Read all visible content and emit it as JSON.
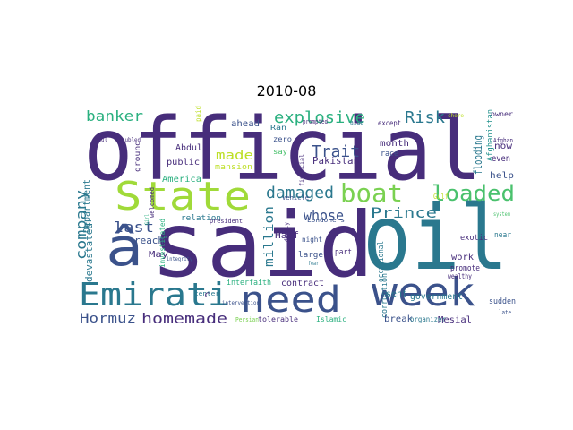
{
  "title": "2010-08",
  "words": [
    {
      "text": "official",
      "color": "#472d7b"
    },
    {
      "text": "said",
      "color": "#472d7b"
    },
    {
      "text": "oil",
      "color": "#2a788e"
    },
    {
      "text": "State",
      "color": "#a0da39"
    },
    {
      "text": "week",
      "color": "#3b528b"
    },
    {
      "text": "need",
      "color": "#3b528b"
    },
    {
      "text": "Emirati",
      "color": "#2a788e"
    },
    {
      "text": "â",
      "color": "#3b528b"
    },
    {
      "text": "boat",
      "color": "#7ad151"
    },
    {
      "text": "loaded",
      "color": "#4ac16d"
    },
    {
      "text": "explosive",
      "color": "#2ab07f"
    },
    {
      "text": "damaged",
      "color": "#2a788e"
    },
    {
      "text": "Risk",
      "color": "#2a788e"
    },
    {
      "text": "Trait",
      "color": "#3b528b"
    },
    {
      "text": "banker",
      "color": "#2ab07f"
    },
    {
      "text": "company",
      "color": "#2a788e"
    },
    {
      "text": "last",
      "color": "#3b528b"
    },
    {
      "text": "made",
      "color": "#bddf26"
    },
    {
      "text": "whose",
      "color": "#3b528b"
    },
    {
      "text": "Prince",
      "color": "#2a788e"
    },
    {
      "text": "homemade",
      "color": "#472d7b"
    },
    {
      "text": "Hormuz",
      "color": "#3b528b"
    },
    {
      "text": "million",
      "color": "#2a788e"
    },
    {
      "text": "flooding",
      "color": "#2a788e"
    },
    {
      "text": "Afghanistan",
      "color": "#21918c"
    },
    {
      "text": "Pakistan",
      "color": "#472d7b"
    },
    {
      "text": "ahead",
      "color": "#3b528b"
    },
    {
      "text": "month",
      "color": "#472d7b"
    },
    {
      "text": "Abdul",
      "color": "#472d7b"
    },
    {
      "text": "public",
      "color": "#472d7b"
    },
    {
      "text": "mansion",
      "color": "#bddf26"
    },
    {
      "text": "America",
      "color": "#2ab07f"
    },
    {
      "text": "devastated",
      "color": "#2a788e"
    },
    {
      "text": "Department",
      "color": "#2a788e"
    },
    {
      "text": "relation",
      "color": "#2a788e"
    },
    {
      "text": "reach",
      "color": "#3b528b"
    },
    {
      "text": "May",
      "color": "#472d7b"
    },
    {
      "text": "Half",
      "color": "#472d7b"
    },
    {
      "text": "contract",
      "color": "#472d7b"
    },
    {
      "text": "interfaith",
      "color": "#2ab07f"
    },
    {
      "text": "corruption",
      "color": "#2a788e"
    },
    {
      "text": "sent",
      "color": "#2a788e"
    },
    {
      "text": "government",
      "color": "#2a788e"
    },
    {
      "text": "break",
      "color": "#3b528b"
    },
    {
      "text": "Mesial",
      "color": "#472d7b"
    },
    {
      "text": "Islamic",
      "color": "#2ab07f"
    },
    {
      "text": "organizer",
      "color": "#2a788e"
    },
    {
      "text": "tolerable",
      "color": "#472d7b"
    },
    {
      "text": "Persian",
      "color": "#7ad151"
    },
    {
      "text": "sudden",
      "color": "#3b528b"
    },
    {
      "text": "late",
      "color": "#3b528b"
    },
    {
      "text": "now",
      "color": "#472d7b"
    },
    {
      "text": "even",
      "color": "#472d7b"
    },
    {
      "text": "help",
      "color": "#3b528b"
    },
    {
      "text": "work",
      "color": "#472d7b"
    },
    {
      "text": "promote",
      "color": "#472d7b"
    },
    {
      "text": "wealthy",
      "color": "#472d7b"
    },
    {
      "text": "exotic",
      "color": "#472d7b"
    },
    {
      "text": "occasional",
      "color": "#2a788e"
    },
    {
      "text": "part",
      "color": "#472d7b"
    },
    {
      "text": "race",
      "color": "#3b528b"
    },
    {
      "text": "large",
      "color": "#3b528b"
    },
    {
      "text": "night",
      "color": "#3b528b"
    },
    {
      "text": "Londoners",
      "color": "#3b528b"
    },
    {
      "text": "zero",
      "color": "#3b528b"
    },
    {
      "text": "Ran",
      "color": "#2a788e"
    },
    {
      "text": "say",
      "color": "#4ac16d"
    },
    {
      "text": "vehicle",
      "color": "#3b528b"
    },
    {
      "text": "president",
      "color": "#472d7b"
    },
    {
      "text": "center",
      "color": "#2a788e"
    },
    {
      "text": "intervention",
      "color": "#3b528b"
    },
    {
      "text": "integrity",
      "color": "#3b528b"
    },
    {
      "text": "welcomed",
      "color": "#472d7b"
    },
    {
      "text": "investigated",
      "color": "#2ab07f"
    },
    {
      "text": "ground",
      "color": "#472d7b"
    },
    {
      "text": "paid",
      "color": "#bddf26"
    },
    {
      "text": "financial",
      "color": "#472d7b"
    },
    {
      "text": "deeply",
      "color": "#472d7b"
    },
    {
      "text": "fear",
      "color": "#2a788e"
    },
    {
      "text": "troubled",
      "color": "#472d7b"
    },
    {
      "text": "prompted",
      "color": "#472d7b"
    },
    {
      "text": "aide",
      "color": "#2a788e"
    },
    {
      "text": "except",
      "color": "#472d7b"
    },
    {
      "text": "chore",
      "color": "#bddf26"
    },
    {
      "text": "owner",
      "color": "#472d7b"
    },
    {
      "text": "Afghan",
      "color": "#472d7b"
    },
    {
      "text": "Gulf",
      "color": "#bddf26"
    },
    {
      "text": "near",
      "color": "#2a788e"
    },
    {
      "text": "system",
      "color": "#4ac16d"
    },
    {
      "text": "Paul",
      "color": "#472d7b"
    },
    {
      "text": "Girl",
      "color": "#2ab07f"
    },
    {
      "text": "c",
      "color": "#472d7b"
    }
  ]
}
